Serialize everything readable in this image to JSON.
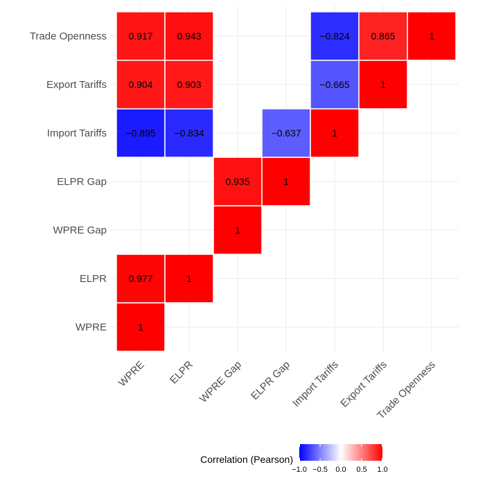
{
  "chart_data": {
    "type": "heatmap",
    "variables": [
      "WPRE",
      "ELPR",
      "WPRE Gap",
      "ELPR Gap",
      "Import Tariffs",
      "Export Tariffs",
      "Trade Openness"
    ],
    "x_categories": [
      "WPRE",
      "ELPR",
      "WPRE Gap",
      "ELPR Gap",
      "Import Tariffs",
      "Export Tariffs",
      "Trade Openness"
    ],
    "y_categories": [
      "WPRE",
      "ELPR",
      "WPRE Gap",
      "ELPR Gap",
      "Import Tariffs",
      "Export Tariffs",
      "Trade Openness"
    ],
    "cells": [
      {
        "x": "WPRE",
        "y": "WPRE",
        "value": 1,
        "label": "1"
      },
      {
        "x": "WPRE",
        "y": "ELPR",
        "value": 0.977,
        "label": "0.977"
      },
      {
        "x": "ELPR",
        "y": "ELPR",
        "value": 1,
        "label": "1"
      },
      {
        "x": "WPRE Gap",
        "y": "WPRE Gap",
        "value": 1,
        "label": "1"
      },
      {
        "x": "WPRE Gap",
        "y": "ELPR Gap",
        "value": 0.935,
        "label": "0.935"
      },
      {
        "x": "ELPR Gap",
        "y": "ELPR Gap",
        "value": 1,
        "label": "1"
      },
      {
        "x": "WPRE",
        "y": "Import Tariffs",
        "value": -0.895,
        "label": "−0.895"
      },
      {
        "x": "ELPR",
        "y": "Import Tariffs",
        "value": -0.834,
        "label": "−0.834"
      },
      {
        "x": "ELPR Gap",
        "y": "Import Tariffs",
        "value": -0.637,
        "label": "−0.637"
      },
      {
        "x": "Import Tariffs",
        "y": "Import Tariffs",
        "value": 1,
        "label": "1"
      },
      {
        "x": "WPRE",
        "y": "Export Tariffs",
        "value": 0.904,
        "label": "0.904"
      },
      {
        "x": "ELPR",
        "y": "Export Tariffs",
        "value": 0.903,
        "label": "0.903"
      },
      {
        "x": "Import Tariffs",
        "y": "Export Tariffs",
        "value": -0.665,
        "label": "−0.665"
      },
      {
        "x": "Export Tariffs",
        "y": "Export Tariffs",
        "value": 1,
        "label": "1"
      },
      {
        "x": "WPRE",
        "y": "Trade Openness",
        "value": 0.917,
        "label": "0.917"
      },
      {
        "x": "ELPR",
        "y": "Trade Openness",
        "value": 0.943,
        "label": "0.943"
      },
      {
        "x": "Import Tariffs",
        "y": "Trade Openness",
        "value": -0.824,
        "label": "−0.824"
      },
      {
        "x": "Export Tariffs",
        "y": "Trade Openness",
        "value": 0.865,
        "label": "0.865"
      },
      {
        "x": "Trade Openness",
        "y": "Trade Openness",
        "value": 1,
        "label": "1"
      }
    ],
    "color_scale": {
      "low": "#0000ff",
      "mid": "#ffffff",
      "high": "#ff0000",
      "limits": [
        -1,
        1
      ]
    },
    "legend": {
      "title": "Correlation (Pearson)",
      "position": "bottom",
      "ticks": [
        {
          "value": -1.0,
          "label": "−1.0"
        },
        {
          "value": -0.5,
          "label": "−0.5"
        },
        {
          "value": 0.0,
          "label": "0.0"
        },
        {
          "value": 0.5,
          "label": "0.5"
        },
        {
          "value": 1.0,
          "label": "1.0"
        }
      ]
    },
    "grid": true
  }
}
